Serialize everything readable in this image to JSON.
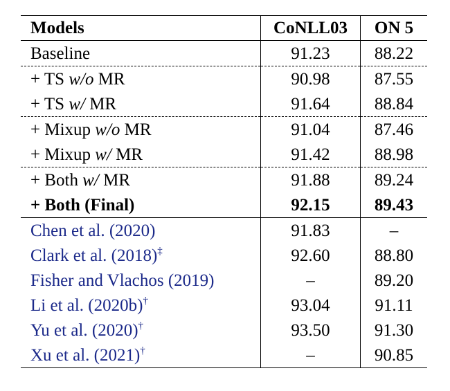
{
  "header": [
    "Models",
    "CoNLL03",
    "ON 5"
  ],
  "citation_color": "#1c2a8a",
  "rows": [
    {
      "model": [
        {
          "text": "Baseline"
        }
      ],
      "values": [
        "91.23",
        "88.22"
      ]
    },
    {
      "border": "dashed",
      "model": [
        {
          "text": "+ TS "
        },
        {
          "text": "w/o",
          "italic": true
        },
        {
          "text": " MR"
        }
      ],
      "values": [
        "90.98",
        "87.55"
      ]
    },
    {
      "model": [
        {
          "text": "+ TS "
        },
        {
          "text": "w/",
          "italic": true
        },
        {
          "text": " MR"
        }
      ],
      "values": [
        "91.64",
        "88.84"
      ]
    },
    {
      "border": "dashed",
      "model": [
        {
          "text": "+ Mixup "
        },
        {
          "text": "w/o",
          "italic": true
        },
        {
          "text": " MR"
        }
      ],
      "values": [
        "91.04",
        "87.46"
      ]
    },
    {
      "model": [
        {
          "text": "+ Mixup "
        },
        {
          "text": "w/",
          "italic": true
        },
        {
          "text": " MR"
        }
      ],
      "values": [
        "91.42",
        "88.98"
      ]
    },
    {
      "border": "dashed",
      "model": [
        {
          "text": "+ Both "
        },
        {
          "text": "w/",
          "italic": true
        },
        {
          "text": " MR"
        }
      ],
      "values": [
        "91.88",
        "89.24"
      ]
    },
    {
      "bold": true,
      "model": [
        {
          "text": "+ Both (Final)"
        }
      ],
      "values": [
        "92.15",
        "89.43"
      ]
    },
    {
      "border": "solid",
      "citation": true,
      "model": [
        {
          "text": "Chen et al. (2020)"
        }
      ],
      "values": [
        "91.83",
        "–"
      ]
    },
    {
      "citation": true,
      "model": [
        {
          "text": "Clark et al. (2018)"
        },
        {
          "text": "‡",
          "sup": true
        }
      ],
      "values": [
        "92.60",
        "88.80"
      ]
    },
    {
      "citation": true,
      "model": [
        {
          "text": "Fisher and Vlachos (2019)"
        }
      ],
      "values": [
        "–",
        "89.20"
      ]
    },
    {
      "citation": true,
      "model": [
        {
          "text": "Li et al. (2020b)"
        },
        {
          "text": "†",
          "sup": true
        }
      ],
      "values": [
        "93.04",
        "91.11"
      ]
    },
    {
      "citation": true,
      "model": [
        {
          "text": "Yu et al. (2020)"
        },
        {
          "text": "†",
          "sup": true
        }
      ],
      "values": [
        "93.50",
        "91.30"
      ]
    },
    {
      "citation": true,
      "model": [
        {
          "text": "Xu et al. (2021)"
        },
        {
          "text": "†",
          "sup": true
        }
      ],
      "values": [
        "–",
        "90.85"
      ]
    }
  ]
}
